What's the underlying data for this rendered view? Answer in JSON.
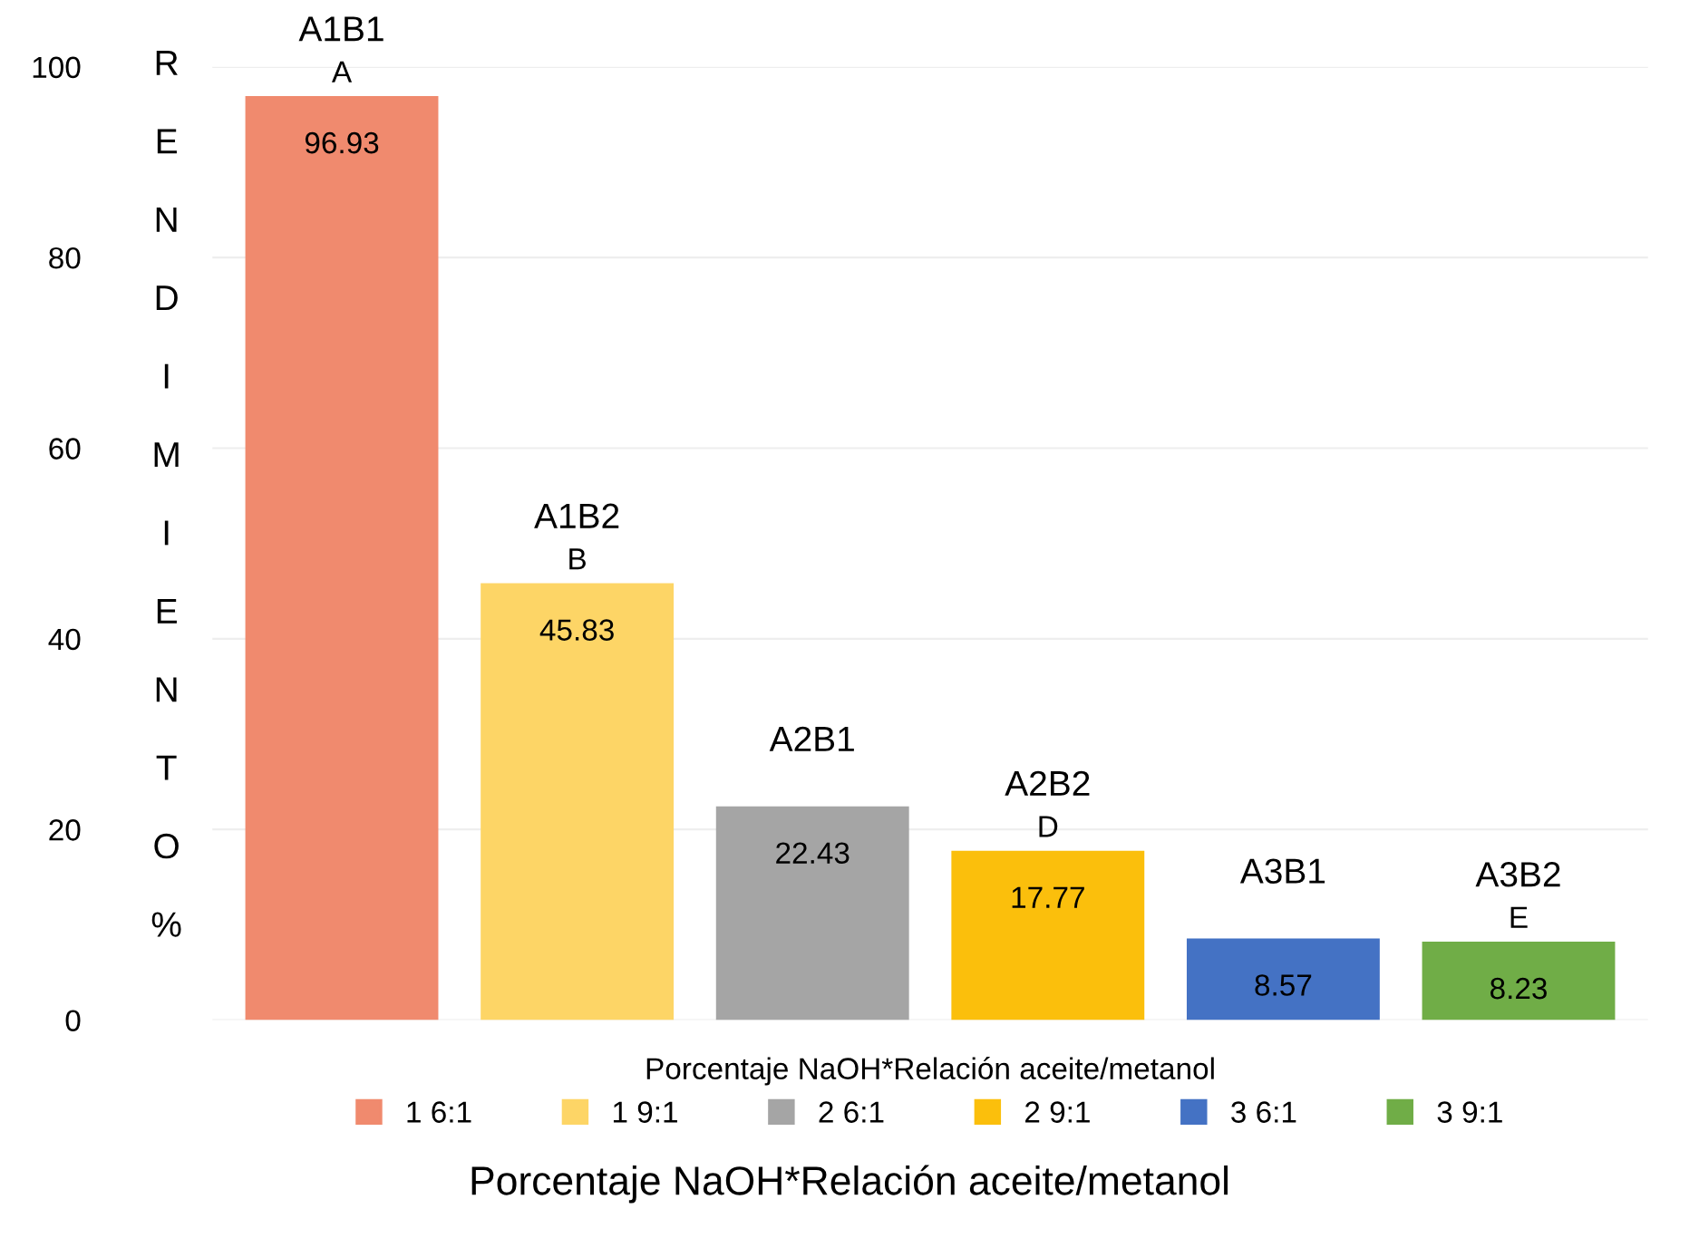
{
  "chart_data": {
    "type": "bar",
    "ylabel": "RENDIMIENTO %",
    "xlabel": "Porcentaje NaOH*Relación aceite/metanol",
    "legend_title": "Porcentaje NaOH*Relación aceite/metanol",
    "categories": [
      "A1B1",
      "A1B2",
      "A2B1",
      "A2B2",
      "A3B1",
      "A3B2"
    ],
    "series": [
      {
        "name": "1 6:1",
        "color": "#f08a6e",
        "values": [
          96.93,
          null,
          null,
          null,
          null,
          null
        ]
      },
      {
        "name": "1 9:1",
        "color": "#fdd566",
        "values": [
          null,
          45.83,
          null,
          null,
          null,
          null
        ]
      },
      {
        "name": "2 6:1",
        "color": "#a5a5a5",
        "values": [
          null,
          null,
          22.43,
          null,
          null,
          null
        ]
      },
      {
        "name": "2 9:1",
        "color": "#fbbf0c",
        "values": [
          null,
          null,
          null,
          17.77,
          null,
          null
        ]
      },
      {
        "name": "3 6:1",
        "color": "#4472c4",
        "values": [
          null,
          null,
          null,
          null,
          8.57,
          null
        ]
      },
      {
        "name": "3 9:1",
        "color": "#70ad47",
        "values": [
          null,
          null,
          null,
          null,
          null,
          8.23
        ]
      }
    ],
    "data_labels": true,
    "annotations": [
      {
        "text": "A",
        "x": "A1B1",
        "y": 96.93
      },
      {
        "text": "B",
        "x": "A1B2",
        "y": 45.83
      },
      {
        "text": "D",
        "x": "A2B2",
        "y": 17.77
      },
      {
        "text": "E",
        "x": "A3B2",
        "y": 8.23
      }
    ],
    "ylim": [
      0,
      100
    ],
    "yticks": [
      0,
      20,
      40,
      60,
      80,
      100
    ],
    "grid": "y",
    "legend": "bottom"
  }
}
